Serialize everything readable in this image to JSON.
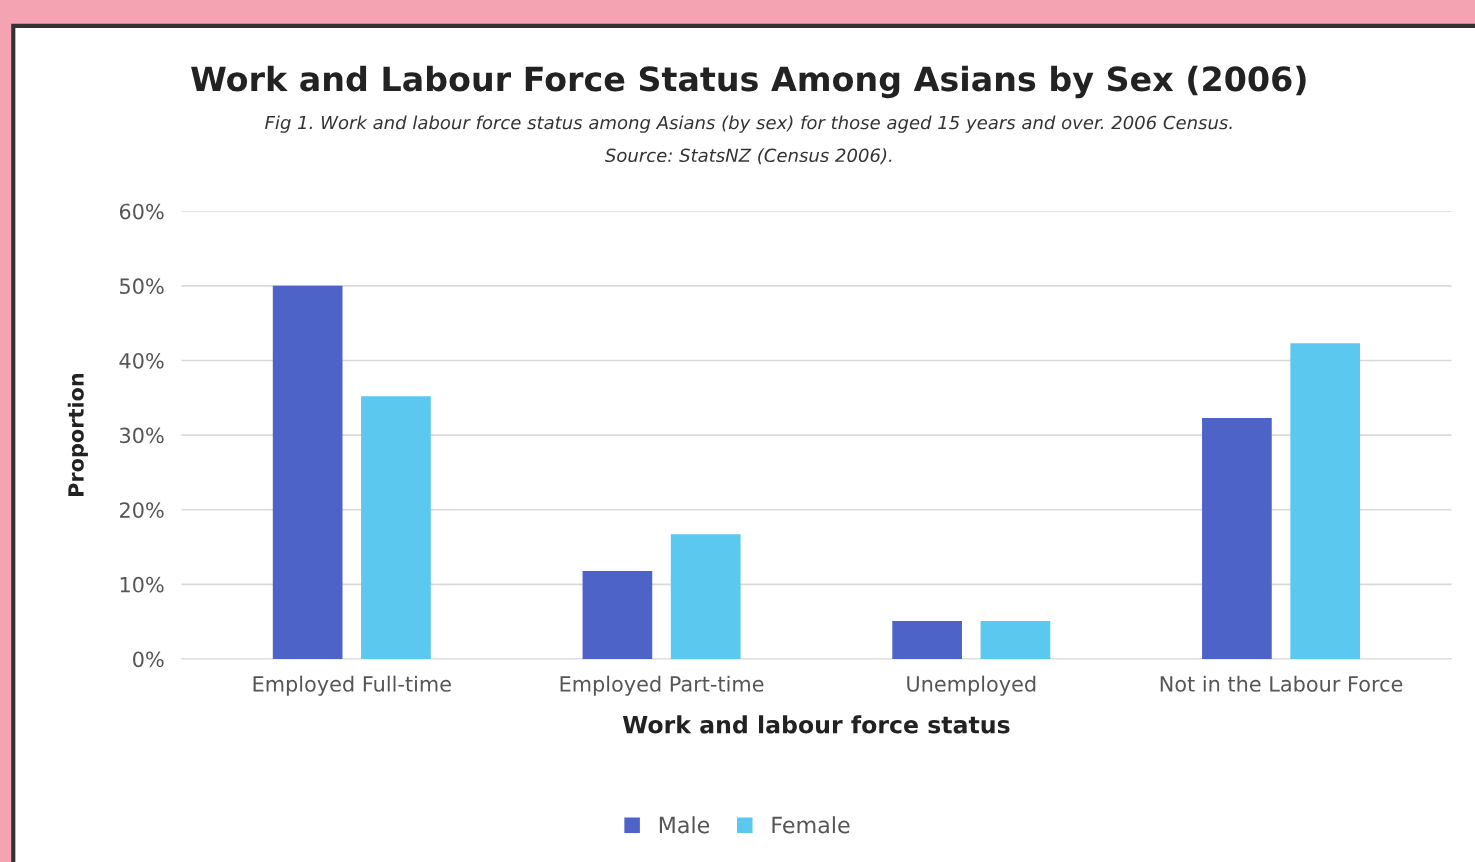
{
  "chart_data": {
    "type": "bar",
    "title": "Work and Labour Force Status Among Asians by Sex (2006)",
    "subtitle": "Fig 1. Work and labour force status among Asians (by sex) for those aged 15 years and over. 2006 Census.",
    "annotations": [
      "Source: StatsNZ (Census 2006)."
    ],
    "xlabel": "Work and labour force status",
    "ylabel": "Proportion",
    "categories": [
      "Employed Full-time",
      "Employed Part-time",
      "Unemployed",
      "Not in the Labour Force"
    ],
    "series": [
      {
        "name": "Male",
        "color": "#4e63c8",
        "values": [
          50.0,
          11.8,
          5.1,
          32.3
        ]
      },
      {
        "name": "Female",
        "color": "#5bc8f0",
        "values": [
          35.2,
          16.7,
          5.1,
          42.3
        ]
      }
    ],
    "ylim": [
      0,
      60
    ],
    "yticks": [
      {
        "value": 0,
        "label": "0%"
      },
      {
        "value": 10,
        "label": "10%"
      },
      {
        "value": 20,
        "label": "20%"
      },
      {
        "value": 30,
        "label": "30%"
      },
      {
        "value": 40,
        "label": "40%"
      },
      {
        "value": 50,
        "label": "50%"
      },
      {
        "value": 60,
        "label": "60%"
      }
    ],
    "grid": "y",
    "legend": "bottom"
  }
}
